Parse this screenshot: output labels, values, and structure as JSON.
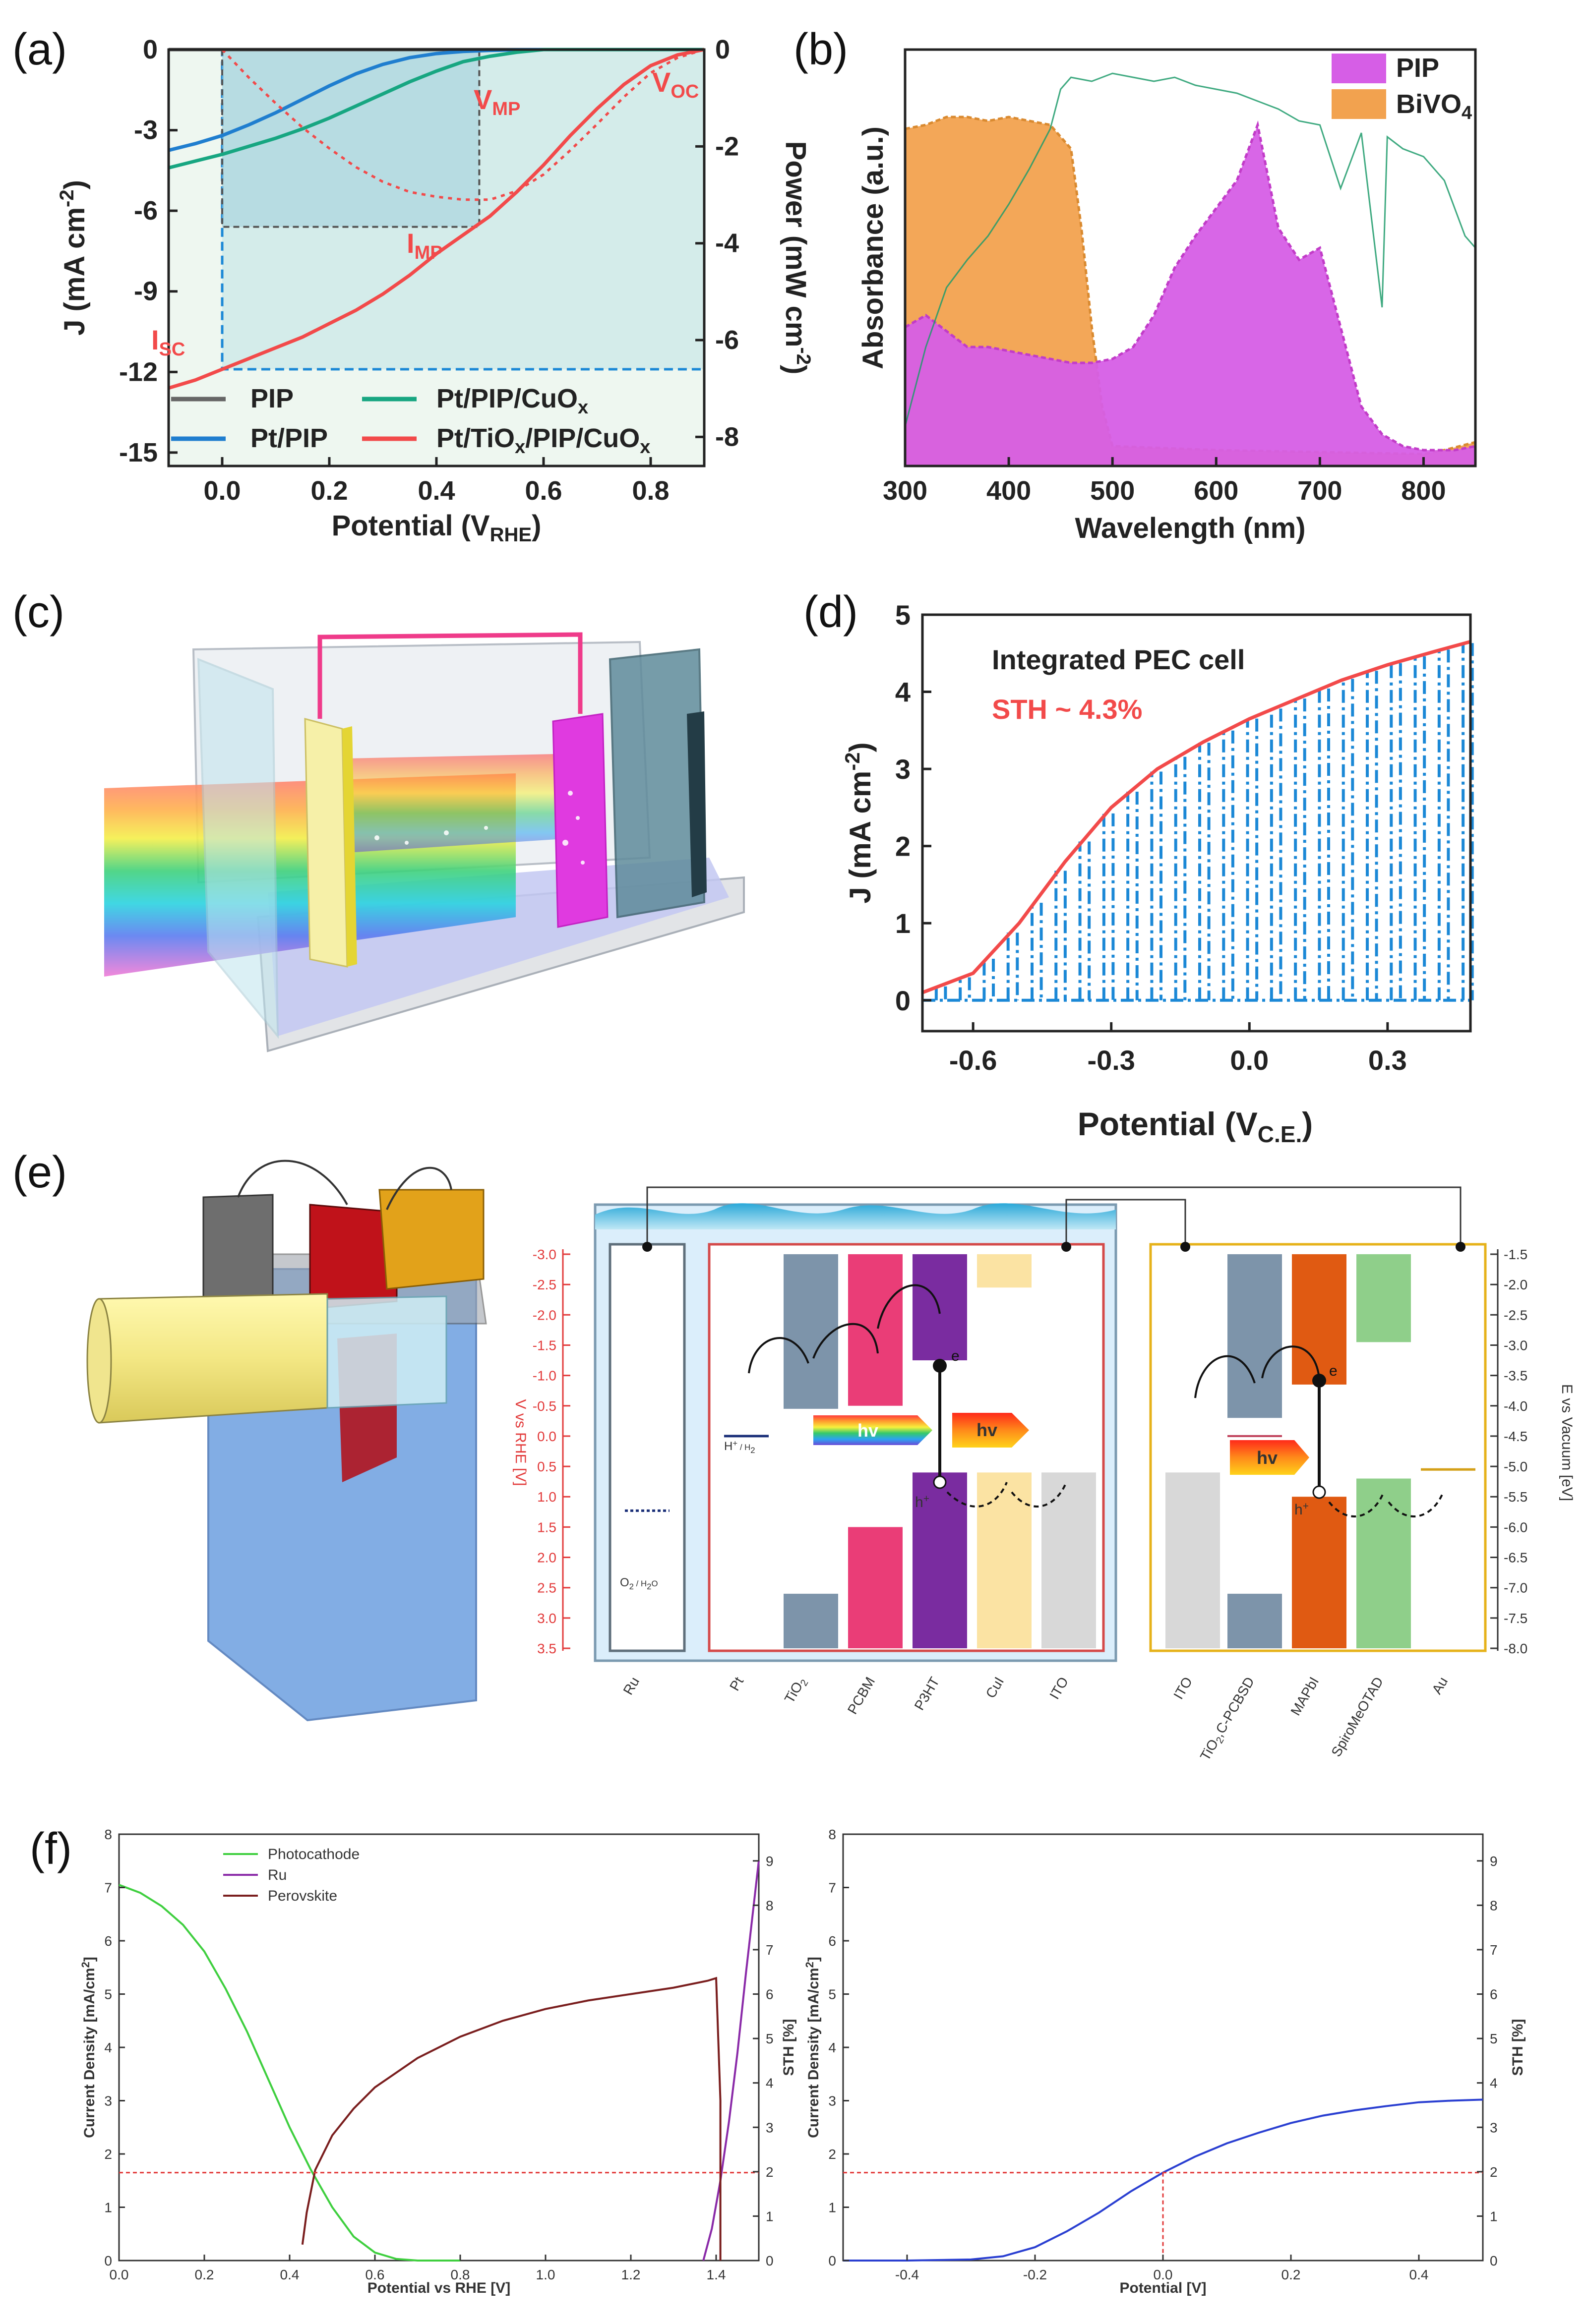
{
  "figure": {
    "panel_labels": [
      "(a)",
      "(b)",
      "(c)",
      "(d)",
      "(e)",
      "(f)"
    ]
  },
  "colors": {
    "pip": "#666666",
    "pt_pip": "#1f7ecf",
    "pt_pip_cuox": "#17a681",
    "pt_tiox": "#f24a4a",
    "annot_red": "#f24a4a",
    "dash_blue": "#1b88d6",
    "fill_area": "#bfe3e6",
    "pip_abs": "#d65ee6",
    "pip_abs_dark": "#c23cc8",
    "bivo4": "#f2a24f",
    "solar": "#1f9b6b",
    "green_f": "#3fcf3f",
    "purple_f": "#8a2aa8",
    "brown_f": "#7a1e1e",
    "blue_f": "#2a3fd1"
  },
  "chart_data": [
    {
      "panel": "(a)",
      "type": "line",
      "xlabel": "Potential (V",
      "xlabel_sub": "RHE",
      "xlabel_close": ")",
      "ylabel": "J (mA cm",
      "ylabel_sup": "-2",
      "ylabel_close": ")",
      "y2label": "Power (mW cm",
      "y2label_sup": "-2",
      "y2label_close": ")",
      "xlim": [
        -0.1,
        0.9
      ],
      "ylim": [
        -15.5,
        0
      ],
      "y2lim": [
        -8.6,
        0
      ],
      "xticks": [
        0.0,
        0.2,
        0.4,
        0.6,
        0.8
      ],
      "xtick_labels": [
        "0.0",
        "0.2",
        "0.4",
        "0.6",
        "0.8"
      ],
      "yticks": [
        0,
        -3,
        -6,
        -9,
        -12,
        -15
      ],
      "ytick_labels": [
        "0",
        "-3",
        "-6",
        "-9",
        "-12",
        "-15"
      ],
      "y2ticks": [
        0,
        -2,
        -4,
        -6,
        -8
      ],
      "y2tick_labels": [
        "0",
        "-2",
        "-4",
        "-6",
        "-8"
      ],
      "annotations": {
        "vmp": "V",
        "vmp_sub": "MP",
        "voc": "V",
        "voc_sub": "OC",
        "imp": "I",
        "imp_sub": "MP",
        "isc": "I",
        "isc_sub": "SC"
      },
      "mpp": {
        "v": 0.48,
        "j": -6.6
      },
      "isc_value": -11.9,
      "voc_value": 0.9,
      "legend": [
        {
          "name": "PIP",
          "sub": "",
          "tail": ""
        },
        {
          "name": "Pt/PIP/CuO",
          "sub": "x",
          "tail": ""
        },
        {
          "name": "Pt/PIP",
          "sub": "",
          "tail": ""
        },
        {
          "name": "Pt/TiO",
          "sub": "x",
          "tail": "/PIP/CuO",
          "sub2": "x"
        }
      ],
      "series": [
        {
          "name": "PIP",
          "x": [
            -0.1,
            0.9
          ],
          "y": [
            0.0,
            0.0
          ]
        },
        {
          "name": "Pt/PIP",
          "x": [
            -0.1,
            -0.05,
            0.0,
            0.05,
            0.1,
            0.15,
            0.2,
            0.25,
            0.3,
            0.35,
            0.4,
            0.45,
            0.5,
            0.55,
            0.6,
            0.9
          ],
          "y": [
            -3.75,
            -3.5,
            -3.2,
            -2.8,
            -2.35,
            -1.85,
            -1.35,
            -0.9,
            -0.55,
            -0.3,
            -0.15,
            -0.07,
            -0.03,
            -0.01,
            0.0,
            0.0
          ]
        },
        {
          "name": "Pt/PIP/CuOx",
          "x": [
            -0.1,
            -0.05,
            0.0,
            0.05,
            0.1,
            0.15,
            0.2,
            0.25,
            0.3,
            0.35,
            0.4,
            0.45,
            0.5,
            0.55,
            0.6,
            0.9
          ],
          "y": [
            -4.4,
            -4.15,
            -3.9,
            -3.6,
            -3.3,
            -2.95,
            -2.55,
            -2.1,
            -1.65,
            -1.2,
            -0.8,
            -0.45,
            -0.25,
            -0.1,
            0.0,
            0.0
          ]
        },
        {
          "name": "Pt/TiOx/PIP/CuOx",
          "x": [
            -0.1,
            -0.05,
            0.0,
            0.05,
            0.1,
            0.15,
            0.2,
            0.25,
            0.3,
            0.35,
            0.4,
            0.45,
            0.5,
            0.55,
            0.6,
            0.65,
            0.7,
            0.75,
            0.8,
            0.85,
            0.9
          ],
          "y": [
            -12.6,
            -12.3,
            -11.9,
            -11.5,
            -11.1,
            -10.7,
            -10.2,
            -9.7,
            -9.1,
            -8.4,
            -7.6,
            -6.9,
            -6.2,
            -5.3,
            -4.3,
            -3.2,
            -2.2,
            -1.3,
            -0.6,
            -0.2,
            0.0
          ]
        },
        {
          "name": "Power",
          "axis": "y2",
          "x": [
            0.0,
            0.05,
            0.1,
            0.15,
            0.2,
            0.25,
            0.3,
            0.35,
            0.4,
            0.45,
            0.5,
            0.55,
            0.6,
            0.65,
            0.7,
            0.75,
            0.8,
            0.85,
            0.9
          ],
          "y": [
            0.0,
            -0.58,
            -1.11,
            -1.61,
            -2.04,
            -2.43,
            -2.73,
            -2.94,
            -3.04,
            -3.1,
            -3.1,
            -2.92,
            -2.58,
            -2.08,
            -1.54,
            -0.98,
            -0.48,
            -0.17,
            0.0
          ]
        }
      ]
    },
    {
      "panel": "(b)",
      "type": "area",
      "xlabel": "Wavelength (nm)",
      "ylabel": "Absorbance (a.u.)",
      "xlim": [
        300,
        850
      ],
      "ylim": [
        0,
        1.0
      ],
      "xticks": [
        300,
        400,
        500,
        600,
        700,
        800
      ],
      "xtick_labels": [
        "300",
        "400",
        "500",
        "600",
        "700",
        "800"
      ],
      "legend": [
        {
          "name": "PIP",
          "sub": ""
        },
        {
          "name": "BiVO",
          "sub": "4"
        }
      ],
      "series": [
        {
          "name": "BiVO4",
          "x": [
            300,
            320,
            340,
            360,
            380,
            400,
            420,
            440,
            460,
            470,
            480,
            490,
            500,
            600,
            700,
            800,
            820,
            850
          ],
          "y": [
            0.85,
            0.86,
            0.88,
            0.88,
            0.87,
            0.88,
            0.87,
            0.86,
            0.8,
            0.6,
            0.35,
            0.15,
            0.05,
            0.04,
            0.035,
            0.03,
            0.04,
            0.06
          ]
        },
        {
          "name": "PIP",
          "x": [
            300,
            320,
            340,
            360,
            380,
            400,
            420,
            440,
            460,
            480,
            500,
            520,
            540,
            560,
            580,
            600,
            620,
            640,
            660,
            680,
            700,
            720,
            740,
            760,
            780,
            800,
            830,
            850
          ],
          "y": [
            0.35,
            0.38,
            0.34,
            0.3,
            0.3,
            0.29,
            0.28,
            0.27,
            0.26,
            0.26,
            0.27,
            0.3,
            0.38,
            0.5,
            0.58,
            0.65,
            0.72,
            0.86,
            0.6,
            0.52,
            0.55,
            0.35,
            0.15,
            0.08,
            0.05,
            0.04,
            0.04,
            0.05
          ]
        },
        {
          "name": "Solar spectrum",
          "x": [
            300,
            320,
            340,
            360,
            380,
            400,
            420,
            440,
            450,
            460,
            480,
            500,
            520,
            540,
            560,
            580,
            600,
            620,
            640,
            660,
            680,
            700,
            720,
            740,
            760,
            765,
            780,
            800,
            820,
            840,
            850
          ],
          "y": [
            0.1,
            0.3,
            0.45,
            0.52,
            0.58,
            0.66,
            0.75,
            0.85,
            0.95,
            0.98,
            0.97,
            0.99,
            0.98,
            0.97,
            0.98,
            0.96,
            0.95,
            0.94,
            0.92,
            0.9,
            0.87,
            0.86,
            0.7,
            0.84,
            0.4,
            0.83,
            0.8,
            0.78,
            0.72,
            0.58,
            0.55
          ]
        }
      ]
    },
    {
      "panel": "(d)",
      "type": "line",
      "title": "Integrated PEC cell",
      "annotation": "STH ~ 4.3%",
      "xlabel": "Potential (V",
      "xlabel_sub": "C.E.",
      "xlabel_close": ")",
      "ylabel": "J (mA cm",
      "ylabel_sup": "-2",
      "ylabel_close": ")",
      "xlim": [
        -0.71,
        0.48
      ],
      "ylim": [
        -0.4,
        5.0
      ],
      "xticks": [
        -0.6,
        -0.3,
        0.0,
        0.3
      ],
      "xtick_labels": [
        "-0.6",
        "-0.3",
        "0.0",
        "0.3"
      ],
      "yticks": [
        0,
        1,
        2,
        3,
        4,
        5
      ],
      "ytick_labels": [
        "0",
        "1",
        "2",
        "3",
        "4",
        "5"
      ],
      "series": [
        {
          "name": "Light current (red envelope)",
          "x": [
            -0.71,
            -0.6,
            -0.5,
            -0.4,
            -0.3,
            -0.2,
            -0.1,
            0.0,
            0.1,
            0.2,
            0.3,
            0.4,
            0.48
          ],
          "y": [
            0.1,
            0.35,
            1.0,
            1.8,
            2.5,
            3.0,
            3.35,
            3.65,
            3.9,
            4.15,
            4.35,
            4.52,
            4.65
          ]
        },
        {
          "name": "Chopped light (blue dashed)",
          "x": [
            -0.71,
            0.48
          ],
          "y": [
            0.0,
            0.0
          ]
        }
      ]
    },
    {
      "panel": "(f) left",
      "type": "line",
      "xlabel": "Potential vs RHE [V]",
      "ylabel": "Current Density [mA/cm",
      "ylabel_sup": "2",
      "ylabel_close": "]",
      "y2label": "STH [%]",
      "xlim": [
        0,
        1.5
      ],
      "ylim": [
        0,
        8
      ],
      "y2lim": [
        0,
        9.6
      ],
      "xticks": [
        0,
        0.2,
        0.4,
        0.6,
        0.8,
        1.0,
        1.2,
        1.4
      ],
      "xtick_labels": [
        "0.0",
        "0.2",
        "0.4",
        "0.6",
        "0.8",
        "1.0",
        "1.2",
        "1.4"
      ],
      "yticks": [
        0,
        1,
        2,
        3,
        4,
        5,
        6,
        7,
        8
      ],
      "ytick_labels": [
        "0",
        "1",
        "2",
        "3",
        "4",
        "5",
        "6",
        "7",
        "8"
      ],
      "y2ticks": [
        0,
        1,
        2,
        3,
        4,
        5,
        6,
        7,
        8,
        9
      ],
      "y2tick_labels": [
        "0",
        "1",
        "2",
        "3",
        "4",
        "5",
        "6",
        "7",
        "8",
        "9"
      ],
      "operating_current": 1.65,
      "legend": [
        "Photocathode",
        "Ru",
        "Perovskite"
      ],
      "series": [
        {
          "name": "Photocathode",
          "x": [
            0.0,
            0.05,
            0.1,
            0.15,
            0.2,
            0.25,
            0.3,
            0.35,
            0.4,
            0.45,
            0.5,
            0.55,
            0.6,
            0.65,
            0.7,
            0.75,
            0.8
          ],
          "y": [
            7.05,
            6.9,
            6.65,
            6.3,
            5.8,
            5.1,
            4.3,
            3.4,
            2.5,
            1.7,
            1.0,
            0.45,
            0.15,
            0.03,
            0.0,
            0.0,
            0.0
          ]
        },
        {
          "name": "Ru",
          "x": [
            1.37,
            1.39,
            1.41,
            1.43,
            1.45,
            1.47,
            1.49,
            1.5
          ],
          "y": [
            0.0,
            0.6,
            1.5,
            2.6,
            3.9,
            5.4,
            6.8,
            7.5
          ]
        },
        {
          "name": "Perovskite",
          "x": [
            0.43,
            0.44,
            0.46,
            0.5,
            0.55,
            0.6,
            0.7,
            0.8,
            0.9,
            1.0,
            1.1,
            1.2,
            1.3,
            1.38,
            1.4,
            1.41,
            1.41
          ],
          "y": [
            0.3,
            0.9,
            1.7,
            2.35,
            2.85,
            3.25,
            3.8,
            4.2,
            4.5,
            4.72,
            4.88,
            5.0,
            5.12,
            5.25,
            5.3,
            3.0,
            0.0
          ]
        }
      ]
    },
    {
      "panel": "(f) right",
      "type": "line",
      "xlabel": "Potential [V]",
      "ylabel": "Current Density [mA/cm",
      "ylabel_sup": "2",
      "ylabel_close": "]",
      "y2label": "STH [%]",
      "xlim": [
        -0.5,
        0.5
      ],
      "ylim": [
        0,
        8
      ],
      "y2lim": [
        0,
        9.6
      ],
      "xticks": [
        -0.4,
        -0.2,
        0.0,
        0.2,
        0.4
      ],
      "xtick_labels": [
        "-0.4",
        "-0.2",
        "0.0",
        "0.2",
        "0.4"
      ],
      "yticks": [
        0,
        1,
        2,
        3,
        4,
        5,
        6,
        7,
        8
      ],
      "ytick_labels": [
        "0",
        "1",
        "2",
        "3",
        "4",
        "5",
        "6",
        "7",
        "8"
      ],
      "y2ticks": [
        0,
        1,
        2,
        3,
        4,
        5,
        6,
        7,
        8,
        9
      ],
      "y2tick_labels": [
        "0",
        "1",
        "2",
        "3",
        "4",
        "5",
        "6",
        "7",
        "8",
        "9"
      ],
      "operating_current": 1.65,
      "series": [
        {
          "name": "Integrated device",
          "x": [
            -0.5,
            -0.4,
            -0.3,
            -0.25,
            -0.2,
            -0.15,
            -0.1,
            -0.05,
            0.0,
            0.05,
            0.1,
            0.15,
            0.2,
            0.25,
            0.3,
            0.35,
            0.4,
            0.45,
            0.5
          ],
          "y": [
            0.0,
            0.0,
            0.02,
            0.08,
            0.25,
            0.55,
            0.9,
            1.3,
            1.65,
            1.95,
            2.2,
            2.4,
            2.58,
            2.72,
            2.82,
            2.9,
            2.97,
            3.0,
            3.02
          ]
        }
      ]
    }
  ],
  "panel_e": {
    "left_axis_label": "V vs RHE [V]",
    "left_ticks": [
      "-3.0",
      "-2.5",
      "-2.0",
      "-1.5",
      "-1.0",
      "-0.5",
      "0.0",
      "0.5",
      "1.0",
      "1.5",
      "2.0",
      "2.5",
      "3.0",
      "3.5"
    ],
    "right_axis_label": "E vs Vacuum [eV]",
    "right_ticks": [
      "-1.5",
      "-2.0",
      "-2.5",
      "-3.0",
      "-3.5",
      "-4.0",
      "-4.5",
      "-5.0",
      "-5.5",
      "-6.0",
      "-6.5",
      "-7.0",
      "-7.5",
      "-8.0"
    ],
    "bottom_labels": [
      "Ru",
      "Pt",
      "TiO",
      "PCBM",
      "P3HT",
      "CuI",
      "ITO",
      "ITO",
      "TiO",
      "MAPbI",
      "SpiroMeOTAD",
      "Au"
    ],
    "tio_sub": "2",
    "tio_pcbm_suffix": ",C-PCBSD",
    "o2": "O",
    "o2_sub": "2",
    "o2_tail": " / H",
    "o2_sub2": "2",
    "o2_end": "O",
    "h_label": "H",
    "h_sup": "+",
    "h_tail": " / H",
    "h_sub": "2",
    "hv": "hv",
    "e_label": "e",
    "h_hole": "h",
    "h_hole_sup": "+"
  }
}
